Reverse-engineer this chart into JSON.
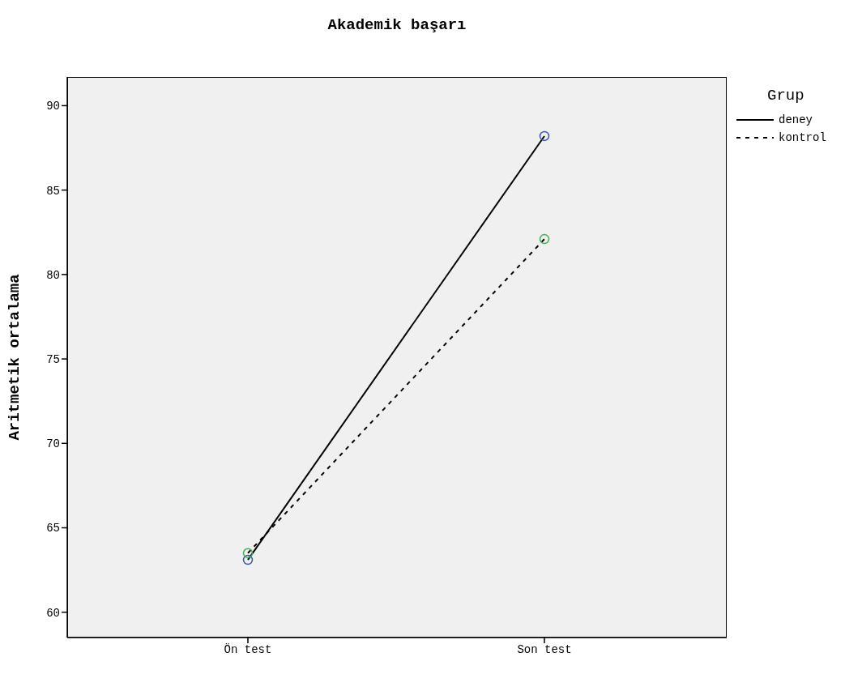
{
  "chart_data": {
    "type": "line",
    "title": "Akademik başarı",
    "ylabel": "Aritmetik ortalama",
    "legend_title": "Grup",
    "categories": [
      "Ön test",
      "Son test"
    ],
    "series": [
      {
        "name": "deney",
        "color": "#000000",
        "colors": [
          "#3c50b4",
          "#3c50b4"
        ],
        "line_style": "solid",
        "values": [
          63.1,
          88.2
        ]
      },
      {
        "name": "kontrol",
        "color": "#000000",
        "colors": [
          "#3cb44b",
          "#3cb44b"
        ],
        "line_style": "dashed",
        "values": [
          63.5,
          82.1
        ]
      }
    ],
    "ylim": [
      58.5,
      91.7
    ],
    "yticks": [
      60,
      65,
      70,
      75,
      80,
      85,
      90
    ],
    "grid": false,
    "legend": "top right",
    "marker": "circle"
  }
}
